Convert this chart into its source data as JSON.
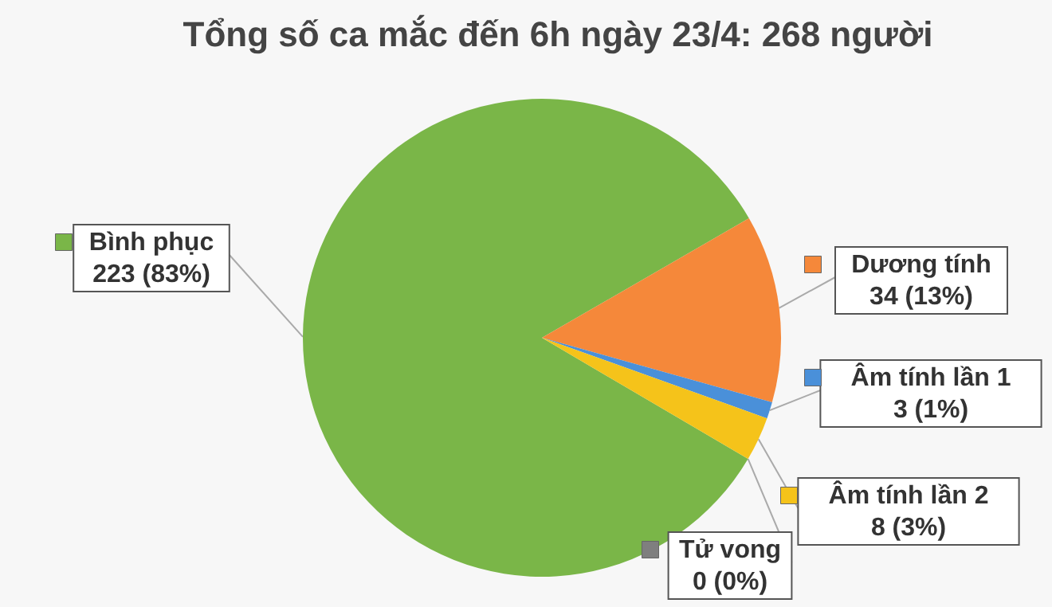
{
  "chart_data": {
    "type": "pie",
    "title": "Tổng số ca mắc đến 6h ngày 23/4: 268 người",
    "categories": [
      "Bình phục",
      "Dương tính",
      "Âm tính lần 1",
      "Âm tính lần 2",
      "Tử vong"
    ],
    "values": [
      223,
      34,
      3,
      8,
      0
    ],
    "value_labels": [
      "223 (83%)",
      "34 (13%)",
      "3 (1%)",
      "8 (3%)",
      "0 (0%)"
    ],
    "legend": "right",
    "colors": [
      "#7ab648",
      "#f5883a",
      "#4a90d9",
      "#f5c31a",
      "#7f7f7f"
    ]
  }
}
